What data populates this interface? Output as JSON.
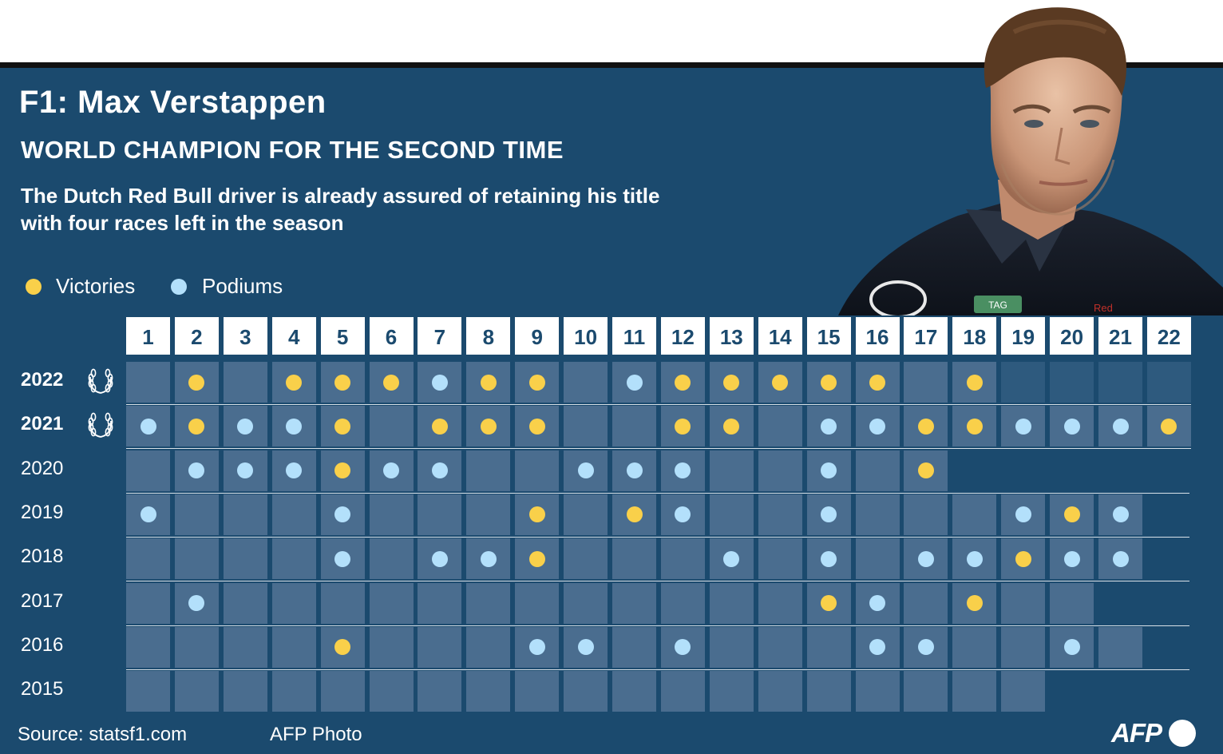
{
  "header": {
    "title": "F1: Max Verstappen",
    "subtitle": "WORLD CHAMPION FOR THE SECOND TIME",
    "description_line1": "The Dutch Red Bull driver is already assured of retaining his title",
    "description_line2": "with four races left in the season"
  },
  "legend": {
    "victories": "Victories",
    "podiums": "Podiums"
  },
  "footer": {
    "source": "Source: statsf1.com",
    "photo_credit": "AFP Photo",
    "logo": "AFP"
  },
  "colors": {
    "background": "#1b4a6e",
    "cell": "#4a6d8f",
    "future_race": "#2e5a7e",
    "victory": "#f9d04a",
    "podium": "#b3e0fb"
  },
  "icons": {
    "title_wreath": "laurel-wreath-icon",
    "photo": "driver-portrait-photo"
  },
  "chart_data": {
    "type": "table",
    "races": [
      "1",
      "2",
      "3",
      "4",
      "5",
      "6",
      "7",
      "8",
      "9",
      "10",
      "11",
      "12",
      "13",
      "14",
      "15",
      "16",
      "17",
      "18",
      "19",
      "20",
      "21",
      "22"
    ],
    "rows": [
      {
        "year": "2022",
        "champion": true,
        "races_run": 18,
        "season_races": 22,
        "victories": [
          2,
          4,
          5,
          6,
          8,
          9,
          12,
          13,
          14,
          15,
          16,
          18
        ],
        "podiums": [
          7,
          11
        ]
      },
      {
        "year": "2021",
        "champion": true,
        "races_run": 22,
        "season_races": 22,
        "victories": [
          2,
          5,
          7,
          8,
          9,
          12,
          13,
          17,
          18,
          22
        ],
        "podiums": [
          1,
          3,
          4,
          15,
          16,
          19,
          20,
          21
        ]
      },
      {
        "year": "2020",
        "champion": false,
        "races_run": 17,
        "season_races": 17,
        "victories": [
          5,
          17
        ],
        "podiums": [
          2,
          3,
          4,
          6,
          7,
          10,
          11,
          12,
          15
        ]
      },
      {
        "year": "2019",
        "champion": false,
        "races_run": 21,
        "season_races": 21,
        "victories": [
          9,
          11,
          20
        ],
        "podiums": [
          1,
          5,
          12,
          15,
          19,
          21
        ]
      },
      {
        "year": "2018",
        "champion": false,
        "races_run": 21,
        "season_races": 21,
        "victories": [
          9,
          19
        ],
        "podiums": [
          5,
          7,
          8,
          13,
          15,
          17,
          18,
          20,
          21
        ]
      },
      {
        "year": "2017",
        "champion": false,
        "races_run": 20,
        "season_races": 20,
        "victories": [
          15,
          18
        ],
        "podiums": [
          2,
          16
        ]
      },
      {
        "year": "2016",
        "champion": false,
        "races_run": 21,
        "season_races": 21,
        "victories": [
          5
        ],
        "podiums": [
          9,
          10,
          12,
          16,
          17,
          20
        ]
      },
      {
        "year": "2015",
        "champion": false,
        "races_run": 19,
        "season_races": 19,
        "victories": [],
        "podiums": []
      }
    ]
  }
}
